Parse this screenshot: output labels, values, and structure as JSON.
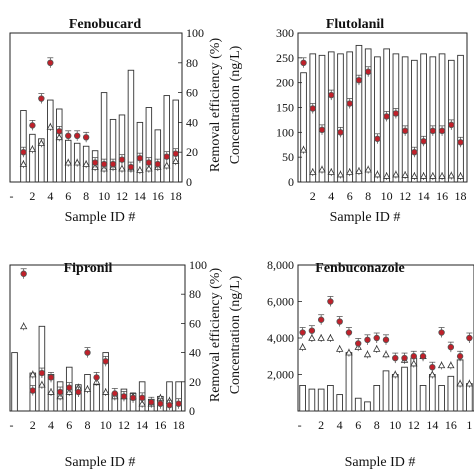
{
  "chart_data": [
    {
      "type": "bar",
      "title": "Fenobucard",
      "xlabel": "Sample ID #",
      "ylabel": "",
      "xtick_labels": [
        "-",
        "2",
        "4",
        "6",
        "8",
        "10",
        "12",
        "14",
        "16",
        "18"
      ],
      "categories": [
        0,
        1,
        2,
        3,
        4,
        5,
        6,
        7,
        8,
        9,
        10,
        11,
        12,
        13,
        14,
        15,
        16,
        17,
        18
      ],
      "series": [
        {
          "kind": "bar",
          "values": [
            0,
            48,
            32,
            29,
            55,
            49,
            28,
            26,
            24,
            21,
            60,
            42,
            45,
            75,
            40,
            50,
            35,
            58,
            55
          ]
        },
        {
          "kind": "circle",
          "values": [
            0,
            20,
            38,
            56,
            80,
            34,
            31,
            31,
            30,
            13,
            12,
            12,
            15,
            10,
            16,
            13,
            12,
            17,
            19
          ]
        },
        {
          "kind": "triangle",
          "values": [
            0,
            12,
            22,
            26,
            37,
            30,
            13,
            13,
            12,
            10,
            9,
            10,
            9,
            9,
            8,
            9,
            10,
            11,
            14
          ]
        }
      ]
    },
    {
      "type": "bar",
      "title": "Flutolanil",
      "xlabel": "Sample ID #",
      "ylabel": "Concentration (ng/L)",
      "yticks": [
        "0",
        "50",
        "100",
        "150",
        "200",
        "250",
        "300"
      ],
      "xtick_labels": [
        "2",
        "4",
        "6",
        "8",
        "10",
        "12",
        "14",
        "16",
        "18"
      ],
      "ylim": [
        0,
        300
      ],
      "categories": [
        1,
        2,
        3,
        4,
        5,
        6,
        7,
        8,
        9,
        10,
        11,
        12,
        13,
        14,
        15,
        16,
        17,
        18
      ],
      "series": [
        {
          "kind": "bar",
          "values": [
            220,
            258,
            255,
            262,
            258,
            262,
            275,
            268,
            252,
            268,
            258,
            252,
            245,
            258,
            252,
            258,
            245,
            255
          ]
        },
        {
          "kind": "circle",
          "values": [
            240,
            148,
            105,
            175,
            100,
            158,
            205,
            222,
            87,
            132,
            138,
            103,
            60,
            82,
            103,
            103,
            115,
            80
          ]
        },
        {
          "kind": "triangle",
          "values": [
            65,
            20,
            25,
            20,
            15,
            20,
            22,
            25,
            15,
            12,
            15,
            14,
            12,
            12,
            12,
            12,
            13,
            12
          ]
        }
      ]
    },
    {
      "type": "bar",
      "title": "Fipronil",
      "xlabel": "Sample ID #",
      "ylabel": "",
      "xtick_labels": [
        "-",
        "2",
        "4",
        "6",
        "8",
        "10",
        "12",
        "14",
        "16",
        "18"
      ],
      "categories": [
        0,
        1,
        2,
        3,
        4,
        5,
        6,
        7,
        8,
        9,
        10,
        11,
        12,
        13,
        14,
        15,
        16,
        17,
        18
      ],
      "series": [
        {
          "kind": "bar",
          "values": [
            40,
            0,
            26,
            58,
            25,
            20,
            30,
            18,
            25,
            18,
            40,
            12,
            15,
            12,
            20,
            8,
            10,
            20,
            20
          ]
        },
        {
          "kind": "circle",
          "values": [
            0,
            94,
            14,
            26,
            23,
            13,
            16,
            13,
            40,
            23,
            34,
            12,
            10,
            9,
            9,
            6,
            5,
            4,
            5
          ]
        },
        {
          "kind": "triangle",
          "values": [
            0,
            58,
            25,
            18,
            13,
            10,
            13,
            16,
            15,
            20,
            13,
            10,
            10,
            10,
            5,
            5,
            9,
            7,
            0
          ]
        }
      ]
    },
    {
      "type": "bar",
      "title": "Fenbuconazole",
      "xlabel": "Sample ID #",
      "ylabel": "Concentration (ng/L)",
      "yticks": [
        "2,000",
        "4,000",
        "6,000",
        "8,000"
      ],
      "xtick_labels": [
        "-",
        "2",
        "4",
        "6",
        "8",
        "10",
        "12",
        "14",
        "16",
        "1"
      ],
      "ylim": [
        0,
        8000
      ],
      "categories": [
        0,
        1,
        2,
        3,
        4,
        5,
        6,
        7,
        8,
        9,
        10,
        11,
        12,
        13,
        14,
        15,
        16,
        17,
        18
      ],
      "series": [
        {
          "kind": "bar",
          "values": [
            1400,
            1200,
            1200,
            1400,
            900,
            3200,
            700,
            500,
            1400,
            2200,
            2000,
            2400,
            2900,
            1400,
            2000,
            1400,
            1900,
            2800,
            1500
          ]
        },
        {
          "kind": "circle",
          "values": [
            4300,
            4400,
            5000,
            6000,
            4900,
            4300,
            3700,
            3900,
            4000,
            3900,
            2900,
            2900,
            3000,
            3000,
            2400,
            4300,
            3500,
            3000,
            4000
          ]
        },
        {
          "kind": "triangle",
          "values": [
            3500,
            4000,
            4000,
            4000,
            3400,
            3200,
            3500,
            3100,
            3400,
            3100,
            2000,
            2800,
            2600,
            3000,
            2000,
            2500,
            2500,
            1500,
            1500
          ]
        }
      ]
    }
  ],
  "right_axes": [
    {
      "label": "Removal efficiency (%)",
      "ticks": [
        "100",
        "80",
        "60",
        "40",
        "20",
        "0"
      ]
    },
    {
      "label": "Removal efficiency (%)",
      "ticks": [
        "100",
        "80",
        "60",
        "40",
        "20",
        "0"
      ]
    }
  ],
  "colors": {
    "circle_fill": "#c0202a",
    "circle_edge": "#555555",
    "bar_edge": "#333333",
    "axis": "#222222"
  }
}
